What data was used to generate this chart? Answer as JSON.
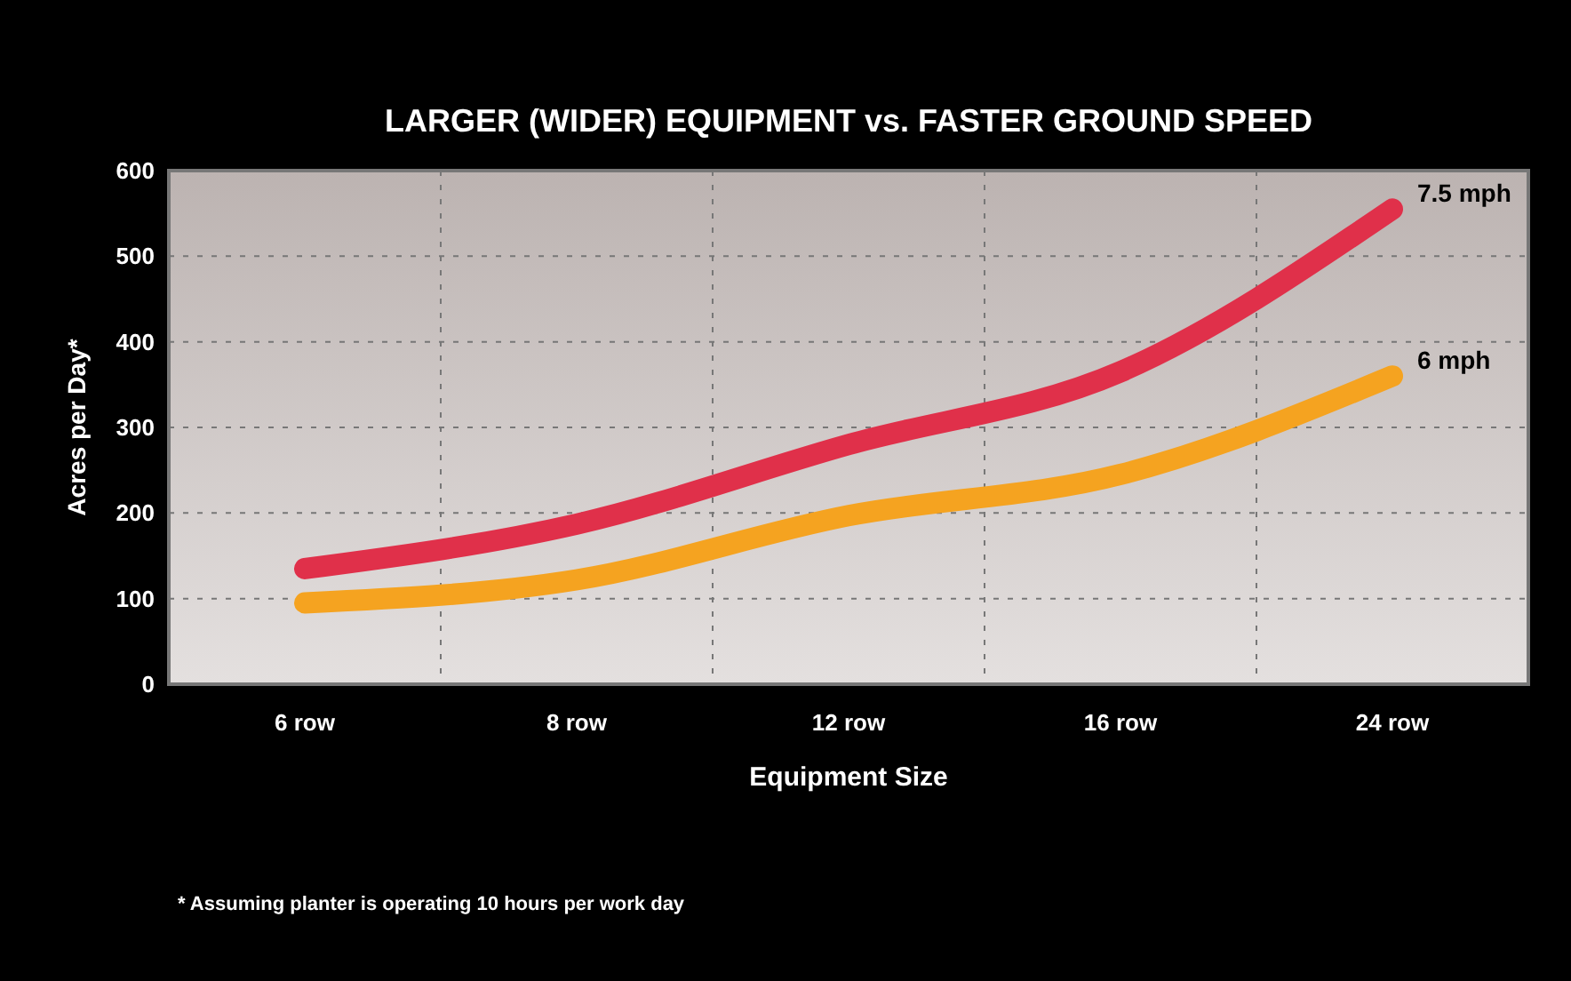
{
  "chart_data": {
    "type": "line",
    "title": "LARGER (WIDER) EQUIPMENT vs. FASTER GROUND SPEED",
    "xlabel": "Equipment Size",
    "ylabel": "Acres per Day*",
    "categories": [
      "6 row",
      "8 row",
      "12 row",
      "16 row",
      "24 row"
    ],
    "series": [
      {
        "name": "7.5 mph",
        "color": "#e0304a",
        "values": [
          135,
          187,
          280,
          365,
          555
        ]
      },
      {
        "name": "6 mph",
        "color": "#f5a320",
        "values": [
          95,
          122,
          197,
          245,
          360
        ]
      }
    ],
    "ylim": [
      0,
      600
    ],
    "yticks": [
      0,
      100,
      200,
      300,
      400,
      500,
      600
    ],
    "grid": true,
    "marker": "none",
    "line_style": "solid",
    "annotations": [
      "* Assuming planter is operating 10 hours per work day"
    ]
  }
}
